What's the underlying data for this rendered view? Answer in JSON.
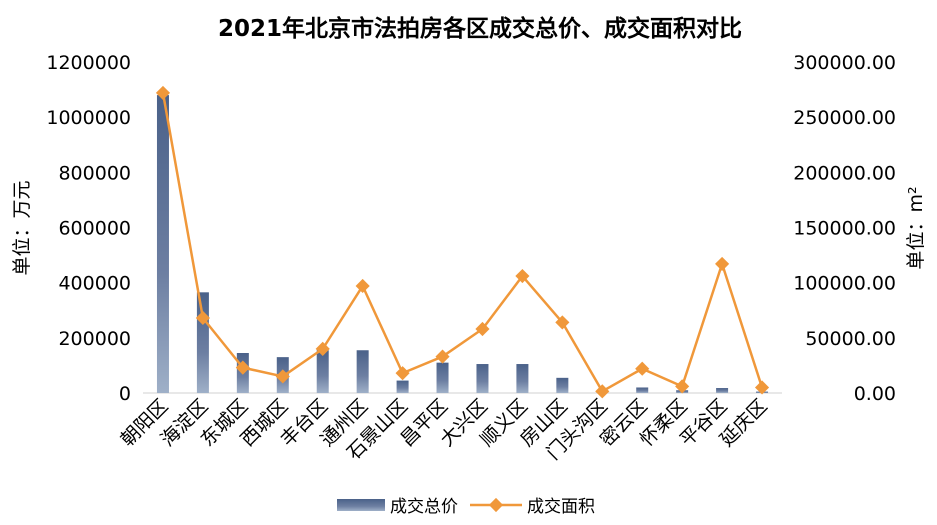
{
  "chart_data": {
    "type": "bar",
    "title": "2021年北京市法拍房各区成交总价、成交面积对比",
    "categories": [
      "朝阳区",
      "海淀区",
      "东城区",
      "西城区",
      "丰台区",
      "通州区",
      "石景山区",
      "昌平区",
      "大兴区",
      "顺义区",
      "房山区",
      "门头沟区",
      "密云区",
      "怀柔区",
      "平谷区",
      "延庆区"
    ],
    "series": [
      {
        "name": "成交总价",
        "type": "bar",
        "axis": "left",
        "values": [
          1080000,
          365000,
          145000,
          130000,
          155000,
          155000,
          45000,
          110000,
          105000,
          105000,
          55000,
          0,
          20000,
          10000,
          18000,
          5000
        ]
      },
      {
        "name": "成交面积",
        "type": "line",
        "axis": "right",
        "values": [
          272000,
          68000,
          23000,
          15000,
          40000,
          97000,
          18000,
          33000,
          58000,
          106000,
          64000,
          1500,
          22000,
          6000,
          117000,
          5000
        ]
      }
    ],
    "ylabel": "单位：万元",
    "y2label": "单位：m²",
    "ylim": [
      0,
      1200000
    ],
    "y2lim": [
      0,
      300000
    ],
    "yticks": [
      "0",
      "200000",
      "400000",
      "600000",
      "800000",
      "1000000",
      "1200000"
    ],
    "y2ticks": [
      "0.00",
      "50000.00",
      "100000.00",
      "150000.00",
      "200000.00",
      "250000.00",
      "300000.00"
    ],
    "legend_position": "bottom",
    "grid": false,
    "colors": {
      "bar": "#4a6189",
      "bar_light": "#9fb0c8",
      "line": "#f0983a"
    }
  }
}
